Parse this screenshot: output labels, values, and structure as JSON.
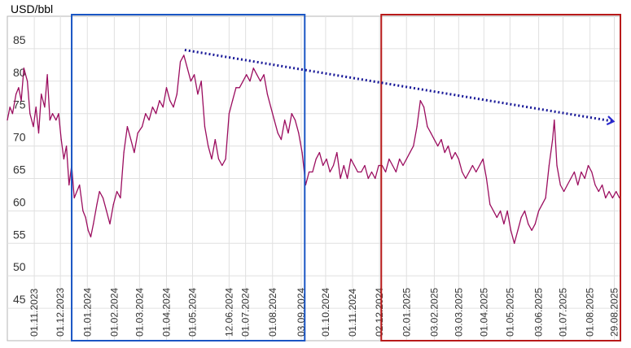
{
  "chart_data": {
    "type": "line",
    "ylabel": "USD/bbl",
    "xlabel": "",
    "title": "",
    "ylim": [
      40,
      90
    ],
    "y_ticks": [
      45,
      50,
      55,
      60,
      65,
      70,
      75,
      80,
      85
    ],
    "x_tick_labels": [
      "01.11.2023",
      "01.12.2023",
      "01.01.2024",
      "01.02.2024",
      "01.03.2024",
      "01.04.2024",
      "01.05.2024",
      "12.06.2024",
      "01.07.2024",
      "01.08.2024",
      "03.09.2024",
      "01.10.2024",
      "01.11.2024",
      "02.12.2024",
      "02.01.2025",
      "03.02.2025",
      "03.03.2025",
      "01.04.2025",
      "01.05.2025",
      "03.06.2025",
      "01.07.2025",
      "01.08.2025",
      "29.08.2025"
    ],
    "x_tick_dates": [
      "2023-11-01",
      "2023-12-01",
      "2024-01-01",
      "2024-02-01",
      "2024-03-01",
      "2024-04-01",
      "2024-05-01",
      "2024-06-12",
      "2024-07-01",
      "2024-08-01",
      "2024-09-03",
      "2024-10-01",
      "2024-11-01",
      "2024-12-02",
      "2025-01-02",
      "2025-02-03",
      "2025-03-03",
      "2025-04-01",
      "2025-05-01",
      "2025-06-03",
      "2025-07-01",
      "2025-08-01",
      "2025-08-29"
    ],
    "x_range": [
      "2023-10-01",
      "2025-09-05"
    ],
    "grid": true,
    "series": [
      {
        "color": "#9b0d5f",
        "points": [
          [
            "2023-10-01",
            74
          ],
          [
            "2023-10-04",
            76
          ],
          [
            "2023-10-07",
            75
          ],
          [
            "2023-10-11",
            78
          ],
          [
            "2023-10-14",
            79
          ],
          [
            "2023-10-17",
            77
          ],
          [
            "2023-10-20",
            82
          ],
          [
            "2023-10-24",
            80
          ],
          [
            "2023-10-27",
            75
          ],
          [
            "2023-10-31",
            73
          ],
          [
            "2023-11-03",
            76
          ],
          [
            "2023-11-06",
            72
          ],
          [
            "2023-11-09",
            78
          ],
          [
            "2023-11-13",
            76
          ],
          [
            "2023-11-16",
            81
          ],
          [
            "2023-11-19",
            74
          ],
          [
            "2023-11-22",
            75
          ],
          [
            "2023-11-26",
            74
          ],
          [
            "2023-11-29",
            75
          ],
          [
            "2023-12-02",
            71
          ],
          [
            "2023-12-05",
            68
          ],
          [
            "2023-12-08",
            70
          ],
          [
            "2023-12-11",
            64
          ],
          [
            "2023-12-14",
            67
          ],
          [
            "2023-12-17",
            62
          ],
          [
            "2023-12-20",
            63
          ],
          [
            "2023-12-23",
            64
          ],
          [
            "2023-12-27",
            60
          ],
          [
            "2023-12-30",
            59
          ],
          [
            "2024-01-02",
            57
          ],
          [
            "2024-01-05",
            56
          ],
          [
            "2024-01-08",
            58
          ],
          [
            "2024-01-12",
            61
          ],
          [
            "2024-01-15",
            63
          ],
          [
            "2024-01-19",
            62
          ],
          [
            "2024-01-23",
            60
          ],
          [
            "2024-01-27",
            58
          ],
          [
            "2024-01-31",
            61
          ],
          [
            "2024-02-04",
            63
          ],
          [
            "2024-02-08",
            62
          ],
          [
            "2024-02-12",
            69
          ],
          [
            "2024-02-16",
            73
          ],
          [
            "2024-02-20",
            71
          ],
          [
            "2024-02-24",
            69
          ],
          [
            "2024-02-28",
            72
          ],
          [
            "2024-03-04",
            73
          ],
          [
            "2024-03-08",
            75
          ],
          [
            "2024-03-12",
            74
          ],
          [
            "2024-03-16",
            76
          ],
          [
            "2024-03-20",
            75
          ],
          [
            "2024-03-24",
            77
          ],
          [
            "2024-03-28",
            76
          ],
          [
            "2024-04-01",
            79
          ],
          [
            "2024-04-05",
            77
          ],
          [
            "2024-04-09",
            76
          ],
          [
            "2024-04-13",
            78
          ],
          [
            "2024-04-17",
            83
          ],
          [
            "2024-04-21",
            84
          ],
          [
            "2024-04-25",
            82
          ],
          [
            "2024-04-29",
            80
          ],
          [
            "2024-05-03",
            81
          ],
          [
            "2024-05-07",
            78
          ],
          [
            "2024-05-11",
            80
          ],
          [
            "2024-05-15",
            73
          ],
          [
            "2024-05-19",
            70
          ],
          [
            "2024-05-23",
            68
          ],
          [
            "2024-05-27",
            71
          ],
          [
            "2024-05-31",
            68
          ],
          [
            "2024-06-04",
            67
          ],
          [
            "2024-06-08",
            68
          ],
          [
            "2024-06-12",
            75
          ],
          [
            "2024-06-16",
            77
          ],
          [
            "2024-06-20",
            79
          ],
          [
            "2024-06-24",
            79
          ],
          [
            "2024-06-28",
            80
          ],
          [
            "2024-07-02",
            81
          ],
          [
            "2024-07-06",
            80
          ],
          [
            "2024-07-10",
            82
          ],
          [
            "2024-07-14",
            81
          ],
          [
            "2024-07-18",
            80
          ],
          [
            "2024-07-22",
            81
          ],
          [
            "2024-07-26",
            78
          ],
          [
            "2024-07-30",
            76
          ],
          [
            "2024-08-03",
            74
          ],
          [
            "2024-08-07",
            72
          ],
          [
            "2024-08-11",
            71
          ],
          [
            "2024-08-15",
            74
          ],
          [
            "2024-08-19",
            72
          ],
          [
            "2024-08-23",
            75
          ],
          [
            "2024-08-27",
            74
          ],
          [
            "2024-08-31",
            72
          ],
          [
            "2024-09-04",
            69
          ],
          [
            "2024-09-08",
            64
          ],
          [
            "2024-09-12",
            66
          ],
          [
            "2024-09-16",
            66
          ],
          [
            "2024-09-20",
            68
          ],
          [
            "2024-09-24",
            69
          ],
          [
            "2024-09-28",
            67
          ],
          [
            "2024-10-02",
            68
          ],
          [
            "2024-10-06",
            66
          ],
          [
            "2024-10-10",
            67
          ],
          [
            "2024-10-14",
            69
          ],
          [
            "2024-10-18",
            65
          ],
          [
            "2024-10-22",
            67
          ],
          [
            "2024-10-26",
            65
          ],
          [
            "2024-10-30",
            68
          ],
          [
            "2024-11-03",
            67
          ],
          [
            "2024-11-07",
            66
          ],
          [
            "2024-11-11",
            66
          ],
          [
            "2024-11-15",
            67
          ],
          [
            "2024-11-19",
            65
          ],
          [
            "2024-11-23",
            66
          ],
          [
            "2024-11-27",
            65
          ],
          [
            "2024-12-01",
            67
          ],
          [
            "2024-12-05",
            67
          ],
          [
            "2024-12-09",
            66
          ],
          [
            "2024-12-13",
            68
          ],
          [
            "2024-12-17",
            67
          ],
          [
            "2024-12-21",
            66
          ],
          [
            "2024-12-25",
            68
          ],
          [
            "2024-12-29",
            67
          ],
          [
            "2025-01-02",
            68
          ],
          [
            "2025-01-06",
            69
          ],
          [
            "2025-01-10",
            70
          ],
          [
            "2025-01-14",
            73
          ],
          [
            "2025-01-18",
            77
          ],
          [
            "2025-01-22",
            76
          ],
          [
            "2025-01-26",
            73
          ],
          [
            "2025-01-30",
            72
          ],
          [
            "2025-02-03",
            71
          ],
          [
            "2025-02-07",
            70
          ],
          [
            "2025-02-11",
            71
          ],
          [
            "2025-02-15",
            69
          ],
          [
            "2025-02-19",
            70
          ],
          [
            "2025-02-23",
            68
          ],
          [
            "2025-02-27",
            69
          ],
          [
            "2025-03-03",
            68
          ],
          [
            "2025-03-07",
            66
          ],
          [
            "2025-03-11",
            65
          ],
          [
            "2025-03-15",
            66
          ],
          [
            "2025-03-19",
            67
          ],
          [
            "2025-03-23",
            66
          ],
          [
            "2025-03-27",
            67
          ],
          [
            "2025-03-31",
            68
          ],
          [
            "2025-04-04",
            65
          ],
          [
            "2025-04-08",
            61
          ],
          [
            "2025-04-12",
            60
          ],
          [
            "2025-04-16",
            59
          ],
          [
            "2025-04-20",
            60
          ],
          [
            "2025-04-24",
            58
          ],
          [
            "2025-04-28",
            60
          ],
          [
            "2025-05-02",
            57
          ],
          [
            "2025-05-06",
            55
          ],
          [
            "2025-05-10",
            57
          ],
          [
            "2025-05-14",
            59
          ],
          [
            "2025-05-18",
            60
          ],
          [
            "2025-05-22",
            58
          ],
          [
            "2025-05-26",
            57
          ],
          [
            "2025-05-30",
            58
          ],
          [
            "2025-06-03",
            60
          ],
          [
            "2025-06-07",
            61
          ],
          [
            "2025-06-11",
            62
          ],
          [
            "2025-06-15",
            67
          ],
          [
            "2025-06-19",
            71
          ],
          [
            "2025-06-21",
            74
          ],
          [
            "2025-06-24",
            67
          ],
          [
            "2025-06-28",
            64
          ],
          [
            "2025-07-02",
            63
          ],
          [
            "2025-07-06",
            64
          ],
          [
            "2025-07-10",
            65
          ],
          [
            "2025-07-14",
            66
          ],
          [
            "2025-07-18",
            64
          ],
          [
            "2025-07-22",
            66
          ],
          [
            "2025-07-26",
            65
          ],
          [
            "2025-07-30",
            67
          ],
          [
            "2025-08-03",
            66
          ],
          [
            "2025-08-07",
            64
          ],
          [
            "2025-08-11",
            63
          ],
          [
            "2025-08-15",
            64
          ],
          [
            "2025-08-19",
            62
          ],
          [
            "2025-08-23",
            63
          ],
          [
            "2025-08-27",
            62
          ],
          [
            "2025-08-31",
            63
          ],
          [
            "2025-09-04",
            62
          ]
        ]
      }
    ],
    "annotations": [
      {
        "type": "rect",
        "color": "#1a56c4",
        "from": "2023-12-14",
        "to": "2024-09-07"
      },
      {
        "type": "rect",
        "color": "#b81a1a",
        "from": "2024-12-04",
        "to": "2025-09-05"
      },
      {
        "type": "trend-arrow",
        "style": "dotted",
        "color": "#1a1a99",
        "from": [
          "2024-04-22",
          84.8
        ],
        "to": [
          "2025-08-28",
          73.8
        ]
      }
    ]
  }
}
